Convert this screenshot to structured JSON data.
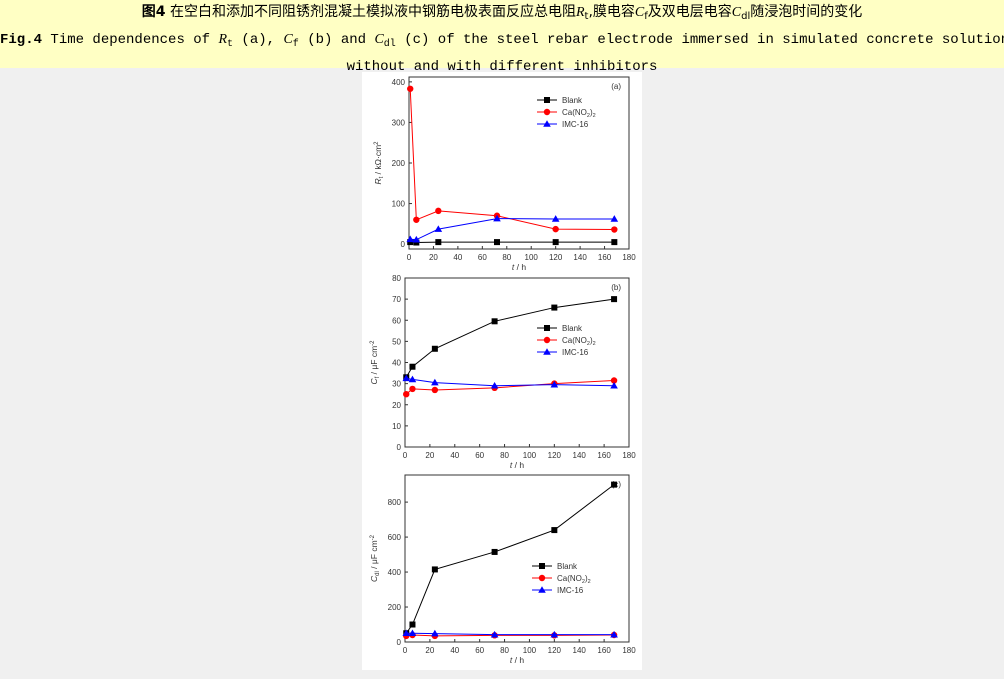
{
  "caption": {
    "zh": {
      "fig": "图4",
      "t1": " 在空白和添加不同阻锈剂混凝土模拟液中钢筋电极表面反应总电阻",
      "r": "R",
      "r_sub": "t",
      "t2": ",膜电容",
      "cf": "C",
      "cf_sub": "f",
      "t3": "及双电层电容",
      "cdl": "C",
      "cdl_sub": "dl",
      "t4": "随浸泡时间的变化"
    },
    "en": {
      "fig": "Fig.4",
      "t1": " Time dependences of ",
      "r": "R",
      "r_sub": "t",
      "t2": " (a), ",
      "cf": "C",
      "cf_sub": "f",
      "t3": " (b) and ",
      "cdl": "C",
      "cdl_sub": "dl",
      "t4": " (c) of the steel rebar electrode immersed in simulated concrete solutions",
      "line2": "without and with different inhibitors"
    }
  },
  "chart_data": [
    {
      "type": "line",
      "panel_label": "(a)",
      "x": [
        1,
        6,
        24,
        72,
        120,
        168
      ],
      "xlabel": "t / h",
      "xlim": [
        0,
        180
      ],
      "xticks": [
        0,
        20,
        40,
        60,
        80,
        100,
        120,
        140,
        160,
        180
      ],
      "ylabel": {
        "main": "R",
        "sub": "t",
        "unit": " / kΩ·cm",
        "sup": "2"
      },
      "ylim": [
        -12,
        412
      ],
      "yticks": [
        0,
        100,
        200,
        300,
        400
      ],
      "legend": "top-right",
      "grid": false,
      "series": [
        {
          "name": "Blank",
          "color": "#000000",
          "marker": "square",
          "values": [
            5,
            4,
            5,
            5,
            5,
            5
          ]
        },
        {
          "name": "Ca(NO2)2",
          "color": "#ff0000",
          "marker": "circle",
          "values": [
            383,
            60,
            82,
            70,
            37,
            36
          ]
        },
        {
          "name": "IMC-16",
          "color": "#0000ff",
          "marker": "triangle",
          "values": [
            12,
            11,
            37,
            63,
            62,
            62
          ]
        }
      ]
    },
    {
      "type": "line",
      "panel_label": "(b)",
      "x": [
        1,
        6,
        24,
        72,
        120,
        168
      ],
      "xlabel": "t / h",
      "xlim": [
        0,
        180
      ],
      "xticks": [
        0,
        20,
        40,
        60,
        80,
        100,
        120,
        140,
        160,
        180
      ],
      "ylabel": {
        "main": "C",
        "sub": "f",
        "unit": " / μF cm",
        "sup": "-2"
      },
      "ylim": [
        0,
        80
      ],
      "yticks": [
        0,
        10,
        20,
        30,
        40,
        50,
        60,
        70,
        80
      ],
      "legend": "right",
      "grid": false,
      "series": [
        {
          "name": "Blank",
          "color": "#000000",
          "marker": "square",
          "values": [
            33,
            38,
            46.5,
            59.5,
            66,
            70
          ]
        },
        {
          "name": "Ca(NO2)2",
          "color": "#ff0000",
          "marker": "circle",
          "values": [
            25,
            27.5,
            27,
            28,
            30,
            31.5
          ]
        },
        {
          "name": "IMC-16",
          "color": "#0000ff",
          "marker": "triangle",
          "values": [
            32.5,
            32,
            30.5,
            29,
            29.5,
            29
          ]
        }
      ]
    },
    {
      "type": "line",
      "panel_label": "(c)",
      "x": [
        1,
        6,
        24,
        72,
        120,
        168
      ],
      "xlabel": "t / h",
      "xlim": [
        0,
        180
      ],
      "xticks": [
        0,
        20,
        40,
        60,
        80,
        100,
        120,
        140,
        160,
        180
      ],
      "ylabel": {
        "main": "C",
        "sub": "dl",
        "unit": " / μF cm",
        "sup": "-2"
      },
      "ylim": [
        0,
        955
      ],
      "yticks": [
        0,
        200,
        400,
        600,
        800
      ],
      "legend": "right",
      "grid": false,
      "series": [
        {
          "name": "Blank",
          "color": "#000000",
          "marker": "square",
          "values": [
            50,
            100,
            415,
            515,
            640,
            900
          ]
        },
        {
          "name": "Ca(NO2)2",
          "color": "#ff0000",
          "marker": "circle",
          "values": [
            35,
            40,
            35,
            38,
            38,
            40
          ]
        },
        {
          "name": "IMC-16",
          "color": "#0000ff",
          "marker": "triangle",
          "values": [
            50,
            50,
            48,
            42,
            42,
            42
          ]
        }
      ]
    }
  ]
}
